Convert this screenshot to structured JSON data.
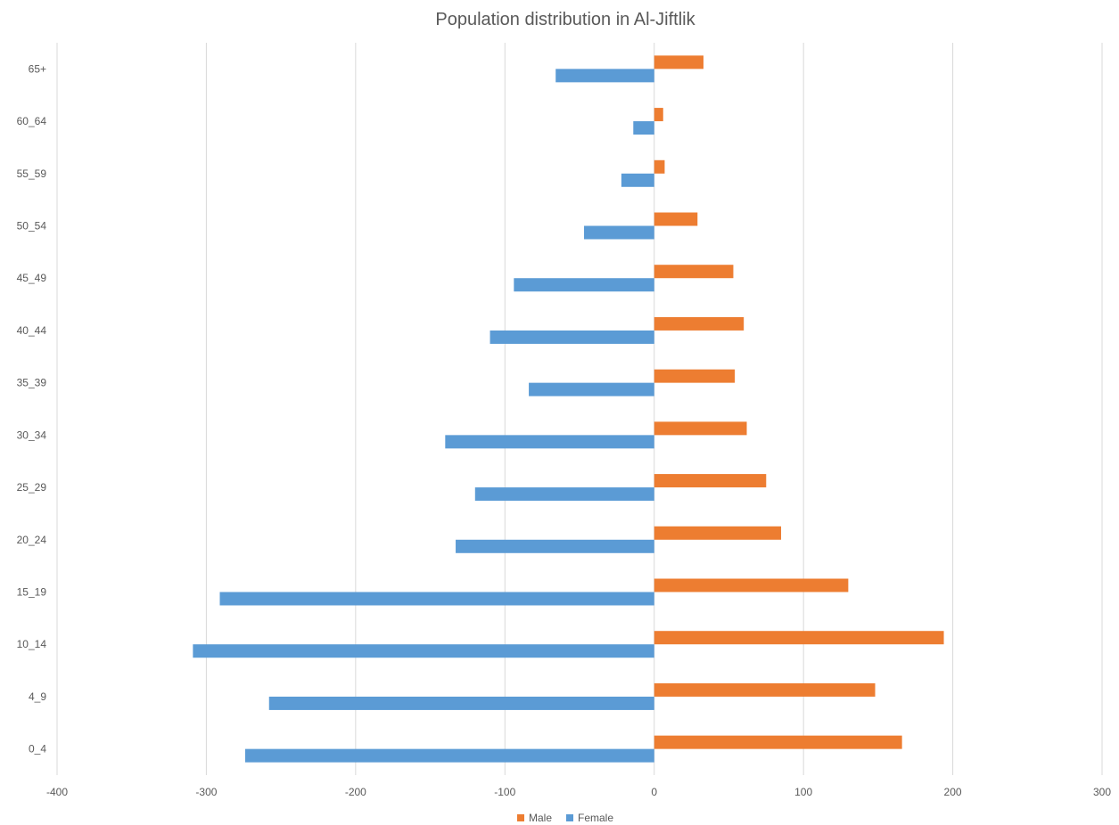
{
  "chart_data": {
    "type": "bar",
    "orientation": "horizontal",
    "title": "Population distribution in Al-Jiftlik",
    "xlabel": "",
    "ylabel": "",
    "xlim": [
      -400,
      300
    ],
    "x_ticks": [
      -400,
      -300,
      -200,
      -100,
      0,
      100,
      200,
      300
    ],
    "grid": true,
    "legend_position": "bottom",
    "categories": [
      "0_4",
      "4_9",
      "10_14",
      "15_19",
      "20_24",
      "25_29",
      "30_34",
      "35_39",
      "40_44",
      "45_49",
      "50_54",
      "55_59",
      "60_64",
      "65+"
    ],
    "series": [
      {
        "name": "Male",
        "color": "#ED7D31",
        "values": [
          166,
          148,
          194,
          130,
          85,
          75,
          62,
          54,
          60,
          53,
          29,
          7,
          6,
          33
        ]
      },
      {
        "name": "Female",
        "color": "#5B9BD5",
        "values": [
          -274,
          -258,
          -309,
          -291,
          -133,
          -120,
          -140,
          -84,
          -110,
          -94,
          -47,
          -22,
          -14,
          -66
        ]
      }
    ]
  }
}
